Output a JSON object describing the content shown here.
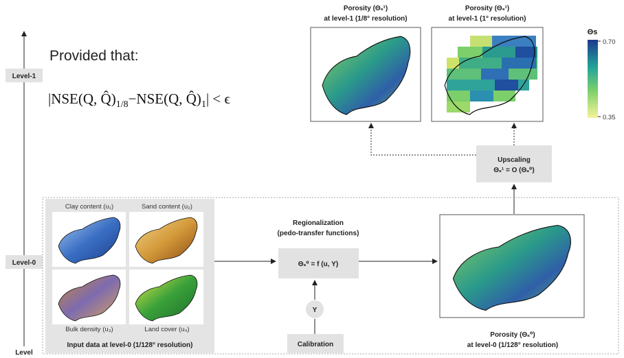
{
  "condition": {
    "intro": "Provided that:",
    "formula": {
      "part1": "|NSE(Q, Q̂)",
      "sub1": "1/8",
      "part2": "−NSE(Q, Q̂)",
      "sub2": "1",
      "part3": "| < ϵ"
    }
  },
  "levels": {
    "top": "Level-1",
    "middle": "Level-0",
    "axis": "Level"
  },
  "level1_maps": [
    {
      "title": "Porosity (Θₛ¹)",
      "subtitle": "at level-1 (1/8° resolution)"
    },
    {
      "title": "Porosity (Θₛ¹)",
      "subtitle": "at level-1 (1° resolution)"
    }
  ],
  "colorbar": {
    "title": "Θs",
    "max": "0.70",
    "min": "0.35"
  },
  "upscaling": {
    "title": "Upscaling",
    "formula": "Θₛ¹ = O (Θₛ⁰)"
  },
  "inputs": {
    "maps": [
      "Clay content (u₁)",
      "Sand content (u₂)",
      "Bulk density (u₃)",
      "Land cover (u₄)"
    ],
    "caption": "Input data at level-0 (1/128° resolution)"
  },
  "regionalization": {
    "title": "Regionalization",
    "subtitle": "(pedo-transfer functions)",
    "formula": "Θₛ⁰ = f (u, Υ)"
  },
  "parameter": "Υ",
  "calibration": "Calibration",
  "level0_map": {
    "title": "Porosity (Θₛ⁰)",
    "subtitle": "at level-0 (1/128° resolution)"
  }
}
